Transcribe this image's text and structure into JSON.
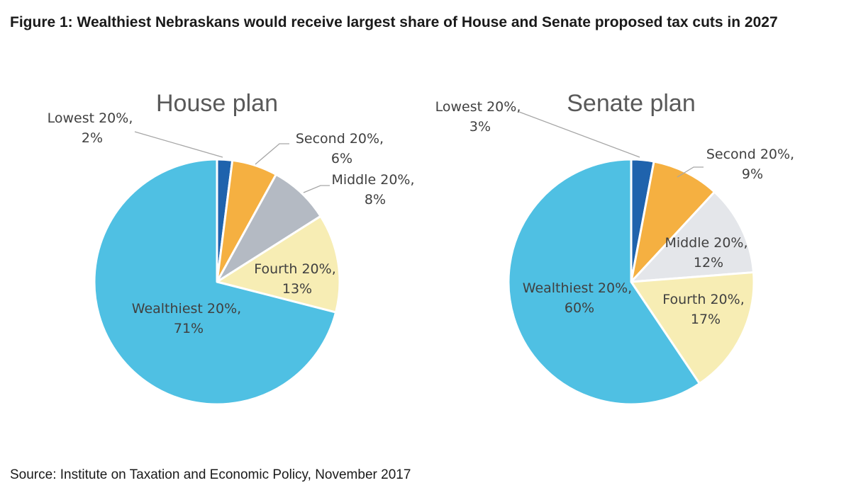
{
  "figure_title": "Figure 1: Wealthiest Nebraskans would receive largest share of House and Senate proposed tax cuts in 2027",
  "source": "Source: Institute on Taxation and Economic Policy, November 2017",
  "colors": {
    "lowest": "#1f63ad",
    "second": "#f5b041",
    "middle_house": "#b4bac3",
    "middle_senate": "#e4e6ea",
    "fourth": "#f7edb4",
    "wealthiest": "#4fc0e3"
  },
  "chart_data": [
    {
      "type": "pie",
      "title": "House plan",
      "slices": [
        {
          "name": "Lowest 20%",
          "value": 2,
          "label": "Lowest 20%,",
          "value_label": "2%"
        },
        {
          "name": "Second 20%",
          "value": 6,
          "label": "Second 20%,",
          "value_label": "6%"
        },
        {
          "name": "Middle 20%",
          "value": 8,
          "label": "Middle 20%,",
          "value_label": "8%"
        },
        {
          "name": "Fourth 20%",
          "value": 13,
          "label": "Fourth 20%,",
          "value_label": "13%"
        },
        {
          "name": "Wealthiest 20%",
          "value": 71,
          "label": "Wealthiest 20%,",
          "value_label": "71%"
        }
      ]
    },
    {
      "type": "pie",
      "title": "Senate plan",
      "slices": [
        {
          "name": "Lowest 20%",
          "value": 3,
          "label": "Lowest 20%,",
          "value_label": "3%"
        },
        {
          "name": "Second 20%",
          "value": 9,
          "label": "Second 20%,",
          "value_label": "9%"
        },
        {
          "name": "Middle 20%",
          "value": 12,
          "label": "Middle 20%,",
          "value_label": "12%"
        },
        {
          "name": "Fourth 20%",
          "value": 17,
          "label": "Fourth 20%,",
          "value_label": "17%"
        },
        {
          "name": "Wealthiest 20%",
          "value": 60,
          "label": "Wealthiest 20%,",
          "value_label": "60%"
        }
      ]
    }
  ]
}
